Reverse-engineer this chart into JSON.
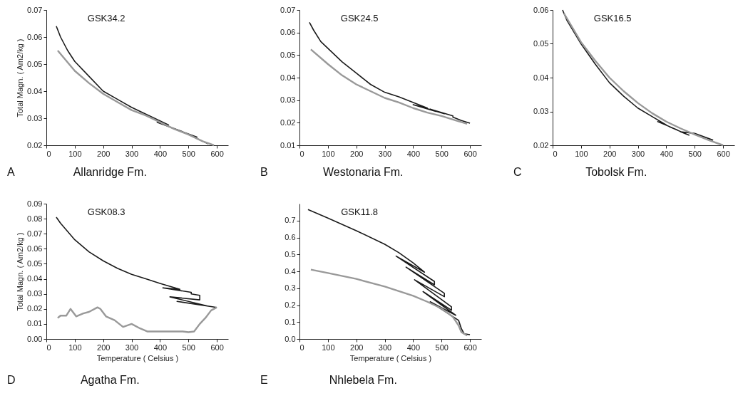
{
  "chart_data": [
    {
      "type": "line",
      "title": "GSK34.2",
      "subtitle": "Allanridge Fm.",
      "annotations": [
        "A"
      ],
      "ylabel": "Total Magn. ( Am2/kg )",
      "xlim": [
        0,
        640
      ],
      "xticks": [
        0,
        100,
        200,
        300,
        400,
        500,
        600
      ],
      "ylim": [
        0.02,
        0.07
      ],
      "yticks": [
        0.02,
        0.03,
        0.04,
        0.05,
        0.06,
        0.07
      ],
      "series": [
        {
          "color": "#1a1a1a",
          "x": [
            35,
            50,
            75,
            100,
            150,
            200,
            250,
            300,
            350,
            400,
            430,
            390,
            480,
            440,
            530,
            490,
            570
          ],
          "values": [
            0.064,
            0.06,
            0.055,
            0.051,
            0.0455,
            0.04,
            0.037,
            0.034,
            0.0315,
            0.029,
            0.0275,
            0.0285,
            0.025,
            0.0265,
            0.023,
            0.0245,
            0.0205
          ]
        },
        {
          "color": "#999999",
          "x": [
            40,
            100,
            150,
            200,
            250,
            300,
            350,
            400,
            450,
            500,
            550,
            590
          ],
          "values": [
            0.055,
            0.0475,
            0.043,
            0.039,
            0.036,
            0.033,
            0.031,
            0.0285,
            0.026,
            0.024,
            0.0215,
            0.02
          ]
        }
      ]
    },
    {
      "type": "line",
      "title": "GSK24.5",
      "subtitle": "Westonaria Fm.",
      "annotations": [
        "B"
      ],
      "xlim": [
        0,
        640
      ],
      "xticks": [
        0,
        100,
        200,
        300,
        400,
        500,
        600
      ],
      "ylim": [
        0.01,
        0.07
      ],
      "yticks": [
        0.01,
        0.02,
        0.03,
        0.04,
        0.05,
        0.06,
        0.07
      ],
      "series": [
        {
          "color": "#1a1a1a",
          "x": [
            35,
            50,
            75,
            100,
            150,
            200,
            250,
            300,
            350,
            450,
            400,
            480,
            430,
            510,
            460,
            540,
            540,
            570,
            600
          ],
          "values": [
            0.0645,
            0.061,
            0.056,
            0.053,
            0.047,
            0.042,
            0.037,
            0.0335,
            0.0315,
            0.0265,
            0.028,
            0.025,
            0.027,
            0.024,
            0.026,
            0.023,
            0.0225,
            0.021,
            0.0198
          ]
        },
        {
          "color": "#999999",
          "x": [
            40,
            100,
            150,
            200,
            250,
            300,
            350,
            400,
            450,
            500,
            550,
            590
          ],
          "values": [
            0.0525,
            0.046,
            0.041,
            0.037,
            0.034,
            0.031,
            0.029,
            0.0265,
            0.0245,
            0.023,
            0.021,
            0.0195
          ]
        }
      ]
    },
    {
      "type": "line",
      "title": "GSK16.5",
      "subtitle": "Tobolsk Fm.",
      "annotations": [
        "C"
      ],
      "xlim": [
        0,
        640
      ],
      "xticks": [
        0,
        100,
        200,
        300,
        400,
        500,
        600
      ],
      "ylim": [
        0.02,
        0.06
      ],
      "yticks": [
        0.02,
        0.03,
        0.04,
        0.05,
        0.06
      ],
      "series": [
        {
          "color": "#1a1a1a",
          "x": [
            35,
            50,
            100,
            150,
            200,
            250,
            300,
            350,
            400,
            370,
            440,
            410,
            480,
            450,
            500,
            565
          ],
          "values": [
            0.06,
            0.057,
            0.05,
            0.044,
            0.0385,
            0.0345,
            0.031,
            0.0285,
            0.026,
            0.027,
            0.0245,
            0.0255,
            0.023,
            0.024,
            0.0235,
            0.0215
          ]
        },
        {
          "color": "#999999",
          "x": [
            40,
            100,
            150,
            200,
            250,
            300,
            350,
            400,
            450,
            500,
            550,
            600
          ],
          "values": [
            0.059,
            0.0505,
            0.045,
            0.04,
            0.036,
            0.0325,
            0.0295,
            0.027,
            0.025,
            0.0232,
            0.0215,
            0.02
          ]
        }
      ]
    },
    {
      "type": "line",
      "title": "GSK08.3",
      "subtitle": "Agatha Fm.",
      "annotations": [
        "D"
      ],
      "xlabel": "Temperature ( Celsius )",
      "ylabel": "Total Magn. ( Am2/kg )",
      "xlim": [
        0,
        640
      ],
      "xticks": [
        0,
        100,
        200,
        300,
        400,
        500,
        600
      ],
      "ylim": [
        0,
        0.09
      ],
      "yticks": [
        {
          "value": 0,
          "label": "0.00"
        },
        0.01,
        0.02,
        0.03,
        0.04,
        0.05,
        0.06,
        0.07,
        0.08,
        0.09
      ],
      "series": [
        {
          "color": "#1a1a1a",
          "x": [
            35,
            50,
            100,
            150,
            200,
            250,
            300,
            350,
            400,
            470,
            410,
            510,
            510,
            540,
            540,
            435,
            565,
            460,
            600
          ],
          "values": [
            0.081,
            0.077,
            0.066,
            0.058,
            0.052,
            0.047,
            0.043,
            0.04,
            0.037,
            0.033,
            0.034,
            0.031,
            0.03,
            0.029,
            0.026,
            0.028,
            0.022,
            0.025,
            0.021
          ]
        },
        {
          "color": "#999999",
          "x": [
            40,
            50,
            70,
            85,
            105,
            130,
            150,
            180,
            190,
            210,
            240,
            270,
            300,
            330,
            355,
            400,
            450,
            480,
            500,
            520,
            540,
            560,
            580,
            600
          ],
          "values": [
            0.014,
            0.0155,
            0.0155,
            0.02,
            0.015,
            0.017,
            0.018,
            0.021,
            0.02,
            0.015,
            0.0125,
            0.008,
            0.01,
            0.007,
            0.005,
            0.005,
            0.005,
            0.005,
            0.0045,
            0.005,
            0.01,
            0.014,
            0.019,
            0.021
          ]
        }
      ]
    },
    {
      "type": "line",
      "title": "GSK11.8",
      "subtitle": "Nhlebela Fm.",
      "annotations": [
        "E"
      ],
      "xlabel": "Temperature ( Celsius )",
      "xlim": [
        0,
        640
      ],
      "xticks": [
        0,
        100,
        200,
        300,
        400,
        500,
        600
      ],
      "ylim": [
        0,
        0.8
      ],
      "yticks": [
        {
          "value": 0,
          "label": "0.0"
        },
        0.1,
        0.2,
        0.3,
        0.4,
        0.5,
        0.6,
        0.7
      ],
      "series": [
        {
          "color": "#1a1a1a",
          "x": [
            30,
            100,
            200,
            300,
            350,
            400,
            440,
            340,
            475,
            475,
            375,
            510,
            510,
            405,
            535,
            535,
            435,
            550,
            460,
            560,
            570,
            580,
            600
          ],
          "values": [
            0.765,
            0.715,
            0.64,
            0.56,
            0.51,
            0.45,
            0.395,
            0.49,
            0.34,
            0.32,
            0.425,
            0.27,
            0.25,
            0.35,
            0.19,
            0.17,
            0.28,
            0.14,
            0.22,
            0.11,
            0.06,
            0.03,
            0.025
          ]
        },
        {
          "color": "#999999",
          "x": [
            40,
            100,
            200,
            300,
            400,
            450,
            500,
            540,
            560,
            570,
            590
          ],
          "values": [
            0.41,
            0.39,
            0.355,
            0.31,
            0.255,
            0.22,
            0.18,
            0.13,
            0.08,
            0.04,
            0.02
          ]
        }
      ]
    }
  ]
}
